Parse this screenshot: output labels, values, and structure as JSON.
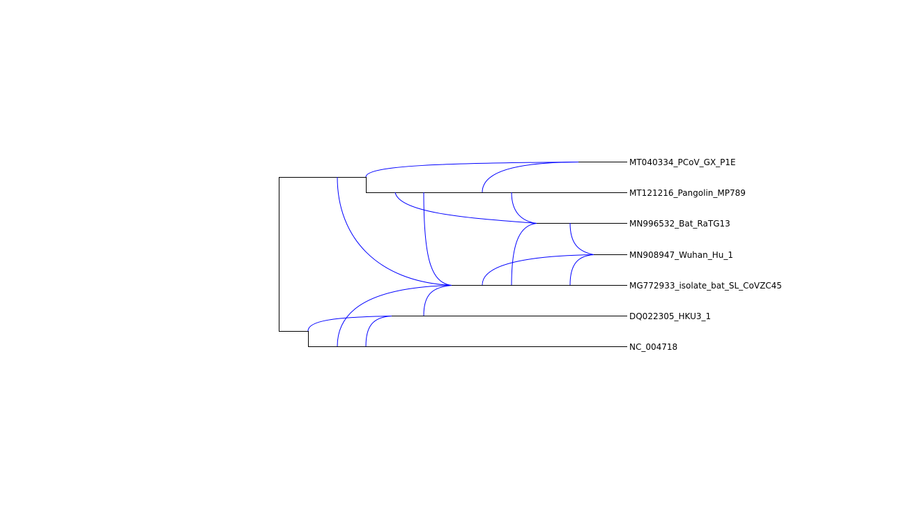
{
  "taxa": {
    "t0": "MT040334_PCoV_GX_P1E",
    "t1": "MT121216_Pangolin_MP789",
    "t2": "MN996532_Bat_RaTG13",
    "t3": "MN908947_Wuhan_Hu_1",
    "t4": "MG772933_isolate_bat_SL_CoVZC45",
    "t5": "DQ022305_HKU3_1",
    "t6": "NC_004718"
  },
  "colors": {
    "tree_edges": "#000000",
    "reticulation_edges": "#0000ff",
    "labels": "#000000"
  }
}
